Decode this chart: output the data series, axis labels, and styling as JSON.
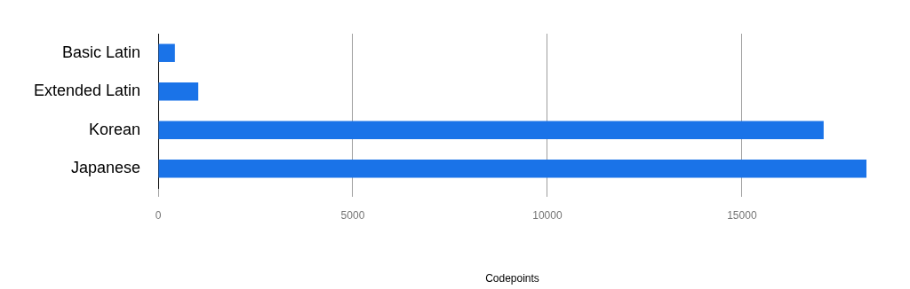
{
  "chart_data": {
    "type": "bar",
    "orientation": "horizontal",
    "xlabel": "Codepoints",
    "categories": [
      "Basic Latin",
      "Extended Latin",
      "Korean",
      "Japanese"
    ],
    "values": [
      430,
      1030,
      17100,
      18200
    ],
    "color": "#1a73e8",
    "xlim": [
      0,
      18200
    ],
    "xticks": [
      0,
      5000,
      10000,
      15000
    ],
    "grid": "x",
    "legend": false
  }
}
